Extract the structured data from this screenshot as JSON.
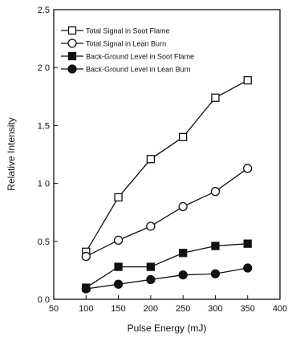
{
  "chart_data": {
    "type": "line",
    "xlabel": "Pulse Energy (mJ)",
    "ylabel": "Relative Intensity",
    "xlim": [
      50,
      400
    ],
    "ylim": [
      0,
      2.5
    ],
    "x_ticks": [
      50,
      100,
      150,
      200,
      250,
      300,
      350,
      400
    ],
    "y_ticks": [
      0,
      0.5,
      1.0,
      1.5,
      2.0,
      2.5
    ],
    "x_tick_labels": [
      "50",
      "100",
      "150",
      "200",
      "250",
      "300",
      "350",
      "400"
    ],
    "y_tick_labels": [
      "0 0",
      "0.5",
      "1 0",
      "1.5",
      "2 0",
      "2.5"
    ],
    "grid": false,
    "legend_position": "top-left",
    "series": [
      {
        "name": "Total Signal in Soot Flame",
        "marker": "square",
        "filled": false,
        "x": [
          100,
          150,
          200,
          250,
          300,
          350
        ],
        "y": [
          0.41,
          0.88,
          1.21,
          1.4,
          1.74,
          1.89
        ]
      },
      {
        "name": "Total Signal in Lean Burn",
        "marker": "circle",
        "filled": false,
        "x": [
          100,
          150,
          200,
          250,
          300,
          350
        ],
        "y": [
          0.37,
          0.51,
          0.63,
          0.8,
          0.93,
          1.13
        ]
      },
      {
        "name": "Back-Ground Level in Soot Flame",
        "marker": "square",
        "filled": true,
        "x": [
          100,
          150,
          200,
          250,
          300,
          350
        ],
        "y": [
          0.1,
          0.28,
          0.28,
          0.4,
          0.46,
          0.48
        ]
      },
      {
        "name": "Back-Ground Level in Lean Burn",
        "marker": "circle",
        "filled": true,
        "x": [
          100,
          150,
          200,
          250,
          300,
          350
        ],
        "y": [
          0.09,
          0.13,
          0.17,
          0.21,
          0.22,
          0.27
        ]
      }
    ]
  }
}
